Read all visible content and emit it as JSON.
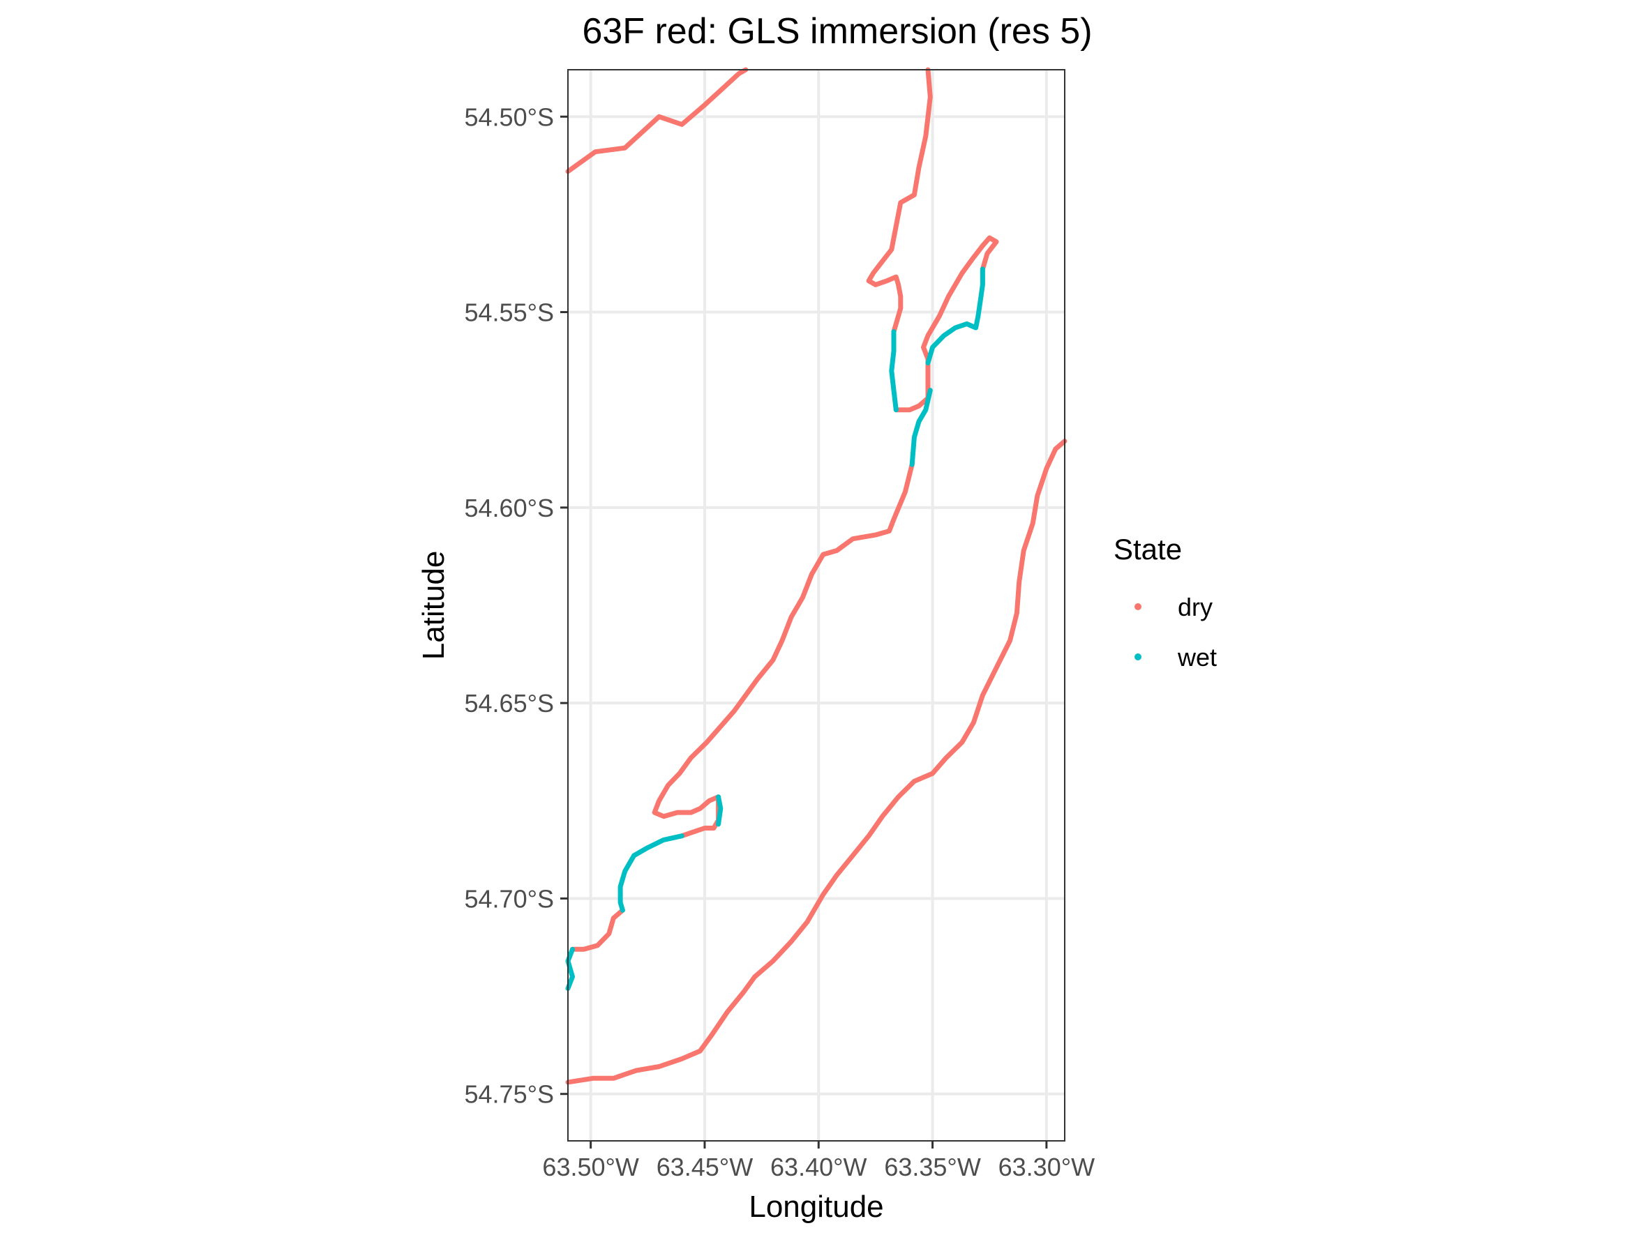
{
  "chart_data": {
    "type": "scatter",
    "title": "63F red: GLS immersion (res 5)",
    "xlabel": "Longitude",
    "ylabel": "Latitude",
    "xlim": [
      -63.51,
      -63.292
    ],
    "ylim": [
      -54.762,
      -54.488
    ],
    "x_ticks": [
      {
        "value": -63.5,
        "label": "63.50°W"
      },
      {
        "value": -63.45,
        "label": "63.45°W"
      },
      {
        "value": -63.4,
        "label": "63.40°W"
      },
      {
        "value": -63.35,
        "label": "63.35°W"
      },
      {
        "value": -63.3,
        "label": "63.30°W"
      }
    ],
    "y_ticks": [
      {
        "value": -54.5,
        "label": "54.50°S"
      },
      {
        "value": -54.55,
        "label": "54.55°S"
      },
      {
        "value": -54.6,
        "label": "54.60°S"
      },
      {
        "value": -54.65,
        "label": "54.65°S"
      },
      {
        "value": -54.7,
        "label": "54.70°S"
      },
      {
        "value": -54.75,
        "label": "54.75°S"
      }
    ],
    "grid": true,
    "legend": {
      "title": "State",
      "position": "right",
      "entries": [
        {
          "label": "dry",
          "color": "#F8766D"
        },
        {
          "label": "wet",
          "color": "#00BFC4"
        }
      ]
    },
    "series": [
      {
        "name": "dry",
        "color": "#F8766D",
        "paths": [
          [
            [
              -63.51,
              -54.514
            ],
            [
              -63.498,
              -54.509
            ],
            [
              -63.485,
              -54.508
            ],
            [
              -63.47,
              -54.5
            ],
            [
              -63.46,
              -54.502
            ],
            [
              -63.45,
              -54.497
            ],
            [
              -63.435,
              -54.489
            ],
            [
              -63.432,
              -54.488
            ]
          ],
          [
            [
              -63.352,
              -54.488
            ],
            [
              -63.351,
              -54.495
            ],
            [
              -63.353,
              -54.505
            ],
            [
              -63.356,
              -54.513
            ],
            [
              -63.358,
              -54.52
            ],
            [
              -63.364,
              -54.522
            ],
            [
              -63.366,
              -54.528
            ],
            [
              -63.368,
              -54.534
            ],
            [
              -63.372,
              -54.537
            ],
            [
              -63.376,
              -54.54
            ],
            [
              -63.378,
              -54.542
            ],
            [
              -63.375,
              -54.543
            ],
            [
              -63.37,
              -54.542
            ],
            [
              -63.366,
              -54.541
            ],
            [
              -63.365,
              -54.543
            ],
            [
              -63.364,
              -54.546
            ],
            [
              -63.364,
              -54.549
            ],
            [
              -63.366,
              -54.553
            ],
            [
              -63.367,
              -54.555
            ]
          ],
          [
            [
              -63.366,
              -54.575
            ],
            [
              -63.36,
              -54.575
            ],
            [
              -63.356,
              -54.574
            ],
            [
              -63.352,
              -54.572
            ],
            [
              -63.352,
              -54.567
            ],
            [
              -63.352,
              -54.562
            ],
            [
              -63.354,
              -54.559
            ],
            [
              -63.352,
              -54.556
            ],
            [
              -63.347,
              -54.551
            ],
            [
              -63.343,
              -54.546
            ],
            [
              -63.337,
              -54.54
            ],
            [
              -63.332,
              -54.536
            ],
            [
              -63.328,
              -54.533
            ],
            [
              -63.325,
              -54.531
            ],
            [
              -63.322,
              -54.532
            ],
            [
              -63.326,
              -54.535
            ],
            [
              -63.328,
              -54.539
            ]
          ],
          [
            [
              -63.359,
              -54.589
            ],
            [
              -63.362,
              -54.596
            ],
            [
              -63.367,
              -54.603
            ],
            [
              -63.369,
              -54.606
            ],
            [
              -63.375,
              -54.607
            ],
            [
              -63.385,
              -54.608
            ],
            [
              -63.392,
              -54.611
            ],
            [
              -63.398,
              -54.612
            ],
            [
              -63.403,
              -54.617
            ],
            [
              -63.407,
              -54.623
            ],
            [
              -63.412,
              -54.628
            ],
            [
              -63.416,
              -54.634
            ],
            [
              -63.42,
              -54.639
            ],
            [
              -63.427,
              -54.644
            ],
            [
              -63.432,
              -54.648
            ],
            [
              -63.437,
              -54.652
            ],
            [
              -63.443,
              -54.656
            ],
            [
              -63.449,
              -54.66
            ],
            [
              -63.456,
              -54.664
            ],
            [
              -63.461,
              -54.668
            ],
            [
              -63.466,
              -54.671
            ],
            [
              -63.47,
              -54.675
            ],
            [
              -63.472,
              -54.678
            ],
            [
              -63.468,
              -54.679
            ],
            [
              -63.462,
              -54.678
            ],
            [
              -63.456,
              -54.678
            ],
            [
              -63.452,
              -54.677
            ],
            [
              -63.448,
              -54.675
            ],
            [
              -63.444,
              -54.674
            ],
            [
              -63.444,
              -54.677
            ],
            [
              -63.444,
              -54.68
            ],
            [
              -63.446,
              -54.682
            ],
            [
              -63.45,
              -54.682
            ],
            [
              -63.455,
              -54.683
            ],
            [
              -63.46,
              -54.684
            ]
          ],
          [
            [
              -63.486,
              -54.703
            ],
            [
              -63.49,
              -54.705
            ],
            [
              -63.492,
              -54.709
            ],
            [
              -63.497,
              -54.712
            ],
            [
              -63.503,
              -54.713
            ],
            [
              -63.508,
              -54.713
            ]
          ],
          [
            [
              -63.51,
              -54.747
            ],
            [
              -63.499,
              -54.746
            ],
            [
              -63.49,
              -54.746
            ],
            [
              -63.48,
              -54.744
            ],
            [
              -63.47,
              -54.743
            ],
            [
              -63.46,
              -54.741
            ],
            [
              -63.452,
              -54.739
            ],
            [
              -63.447,
              -54.735
            ],
            [
              -63.44,
              -54.729
            ],
            [
              -63.433,
              -54.724
            ],
            [
              -63.428,
              -54.72
            ],
            [
              -63.42,
              -54.716
            ],
            [
              -63.412,
              -54.711
            ],
            [
              -63.405,
              -54.706
            ],
            [
              -63.398,
              -54.699
            ],
            [
              -63.392,
              -54.694
            ],
            [
              -63.385,
              -54.689
            ],
            [
              -63.378,
              -54.684
            ],
            [
              -63.372,
              -54.679
            ],
            [
              -63.365,
              -54.674
            ],
            [
              -63.358,
              -54.67
            ],
            [
              -63.35,
              -54.668
            ],
            [
              -63.344,
              -54.664
            ],
            [
              -63.337,
              -54.66
            ],
            [
              -63.332,
              -54.655
            ],
            [
              -63.328,
              -54.648
            ],
            [
              -63.322,
              -54.641
            ],
            [
              -63.316,
              -54.634
            ],
            [
              -63.313,
              -54.627
            ],
            [
              -63.312,
              -54.619
            ],
            [
              -63.31,
              -54.611
            ],
            [
              -63.306,
              -54.604
            ],
            [
              -63.304,
              -54.597
            ],
            [
              -63.3,
              -54.59
            ],
            [
              -63.296,
              -54.585
            ],
            [
              -63.292,
              -54.583
            ]
          ]
        ]
      },
      {
        "name": "wet",
        "color": "#00BFC4",
        "paths": [
          [
            [
              -63.367,
              -54.555
            ],
            [
              -63.367,
              -54.56
            ],
            [
              -63.368,
              -54.565
            ],
            [
              -63.367,
              -54.57
            ],
            [
              -63.366,
              -54.575
            ]
          ],
          [
            [
              -63.328,
              -54.539
            ],
            [
              -63.328,
              -54.543
            ],
            [
              -63.329,
              -54.547
            ],
            [
              -63.33,
              -54.551
            ],
            [
              -63.331,
              -54.554
            ],
            [
              -63.335,
              -54.553
            ],
            [
              -63.34,
              -54.554
            ],
            [
              -63.345,
              -54.556
            ],
            [
              -63.35,
              -54.559
            ],
            [
              -63.352,
              -54.563
            ]
          ],
          [
            [
              -63.351,
              -54.57
            ],
            [
              -63.353,
              -54.575
            ],
            [
              -63.356,
              -54.578
            ],
            [
              -63.358,
              -54.582
            ],
            [
              -63.359,
              -54.589
            ]
          ],
          [
            [
              -63.444,
              -54.674
            ],
            [
              -63.443,
              -54.677
            ],
            [
              -63.444,
              -54.681
            ]
          ],
          [
            [
              -63.46,
              -54.684
            ],
            [
              -63.468,
              -54.685
            ],
            [
              -63.475,
              -54.687
            ],
            [
              -63.481,
              -54.689
            ],
            [
              -63.485,
              -54.693
            ],
            [
              -63.487,
              -54.697
            ],
            [
              -63.487,
              -54.701
            ],
            [
              -63.486,
              -54.703
            ]
          ],
          [
            [
              -63.508,
              -54.713
            ],
            [
              -63.51,
              -54.716
            ],
            [
              -63.508,
              -54.72
            ],
            [
              -63.51,
              -54.723
            ]
          ]
        ]
      }
    ]
  }
}
